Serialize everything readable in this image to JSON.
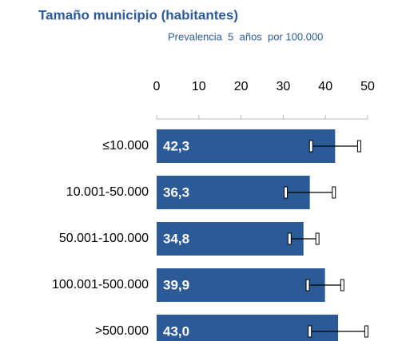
{
  "chart_data": {
    "type": "bar",
    "orientation": "horizontal",
    "title": "Tamaño municipio (habitantes)",
    "subtitle": "Prevalencia  5  años  por 100.000",
    "categories": [
      "≤10.000",
      "10.001-50.000",
      "50.001-100.000",
      "100.001-500.000",
      ">500.000"
    ],
    "values": [
      42.3,
      36.3,
      34.8,
      39.9,
      43.0
    ],
    "value_labels": [
      "42,3",
      "36,3",
      "34,8",
      "39,9",
      "43,0"
    ],
    "errors": [
      5.7,
      5.7,
      3.3,
      4.1,
      6.7
    ],
    "color": "#2b5a96",
    "xlim": [
      0,
      50
    ],
    "xticks": [
      0,
      10,
      20,
      30,
      40,
      50
    ]
  }
}
